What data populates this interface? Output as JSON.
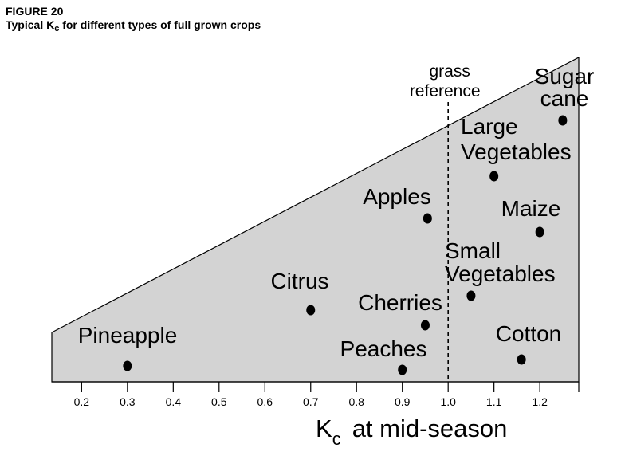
{
  "figure": {
    "number": "FIGURE 20",
    "title_prefix": "Typical K",
    "title_sub": "c",
    "title_suffix": " for different types of full grown crops"
  },
  "chart_data": {
    "type": "scatter",
    "xlim": [
      0.135,
      1.285
    ],
    "x_ticks": [
      0.2,
      0.3,
      0.4,
      0.5,
      0.6,
      0.7,
      0.8,
      0.9,
      1.0,
      1.1,
      1.2
    ],
    "x_tick_labels": [
      "0.2",
      "0.3",
      "0.4",
      "0.5",
      "0.6",
      "0.7",
      "0.8",
      "0.9",
      "1.0",
      "1.1",
      "1.2"
    ],
    "xlabel_main": "K",
    "xlabel_sub": "c",
    "xlabel_rest": "at  mid-season",
    "reference_line": {
      "x": 1.0,
      "label_lines": [
        "grass",
        "reference"
      ]
    },
    "points": [
      {
        "name": "Pineapple",
        "label_lines": [
          "Pineapple"
        ],
        "x": 0.3
      },
      {
        "name": "Citrus",
        "label_lines": [
          "Citrus"
        ],
        "x": 0.7
      },
      {
        "name": "Peaches",
        "label_lines": [
          "Peaches"
        ],
        "x": 0.9
      },
      {
        "name": "Cherries",
        "label_lines": [
          "Cherries"
        ],
        "x": 0.95
      },
      {
        "name": "Apples",
        "label_lines": [
          "Apples"
        ],
        "x": 0.955
      },
      {
        "name": "Small Vegetables",
        "label_lines": [
          "Small",
          "Vegetables"
        ],
        "x": 1.05
      },
      {
        "name": "Large Vegetables",
        "label_lines": [
          "Large",
          "Vegetables"
        ],
        "x": 1.1
      },
      {
        "name": "Cotton",
        "label_lines": [
          "Cotton"
        ],
        "x": 1.16
      },
      {
        "name": "Maize",
        "label_lines": [
          "Maize"
        ],
        "x": 1.2
      },
      {
        "name": "Sugar cane",
        "label_lines": [
          "Sugar",
          "cane"
        ],
        "x": 1.25
      }
    ],
    "colors": {
      "fill": "#d3d3d3",
      "stroke": "#000000",
      "point": "#000000"
    },
    "grid": false
  }
}
